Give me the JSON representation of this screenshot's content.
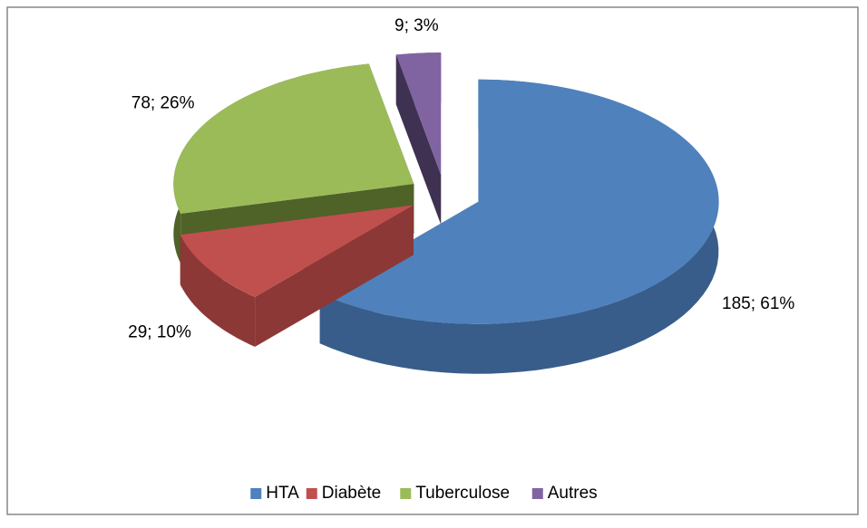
{
  "chart_data": {
    "type": "pie3d",
    "categories": [
      "HTA",
      "Diabète",
      "Tuberculose",
      "Autres"
    ],
    "values": [
      185,
      29,
      78,
      9
    ],
    "value_labels": [
      "185; 61%",
      "29; 10%",
      "78; 26%",
      "9; 3%"
    ],
    "colors": [
      "#4f81bd",
      "#c0504d",
      "#9bbb59",
      "#8064a2"
    ],
    "side_colors": [
      "#385d8a",
      "#8c3836",
      "#4f6228",
      "#3f3151"
    ],
    "legend": "bottom"
  }
}
